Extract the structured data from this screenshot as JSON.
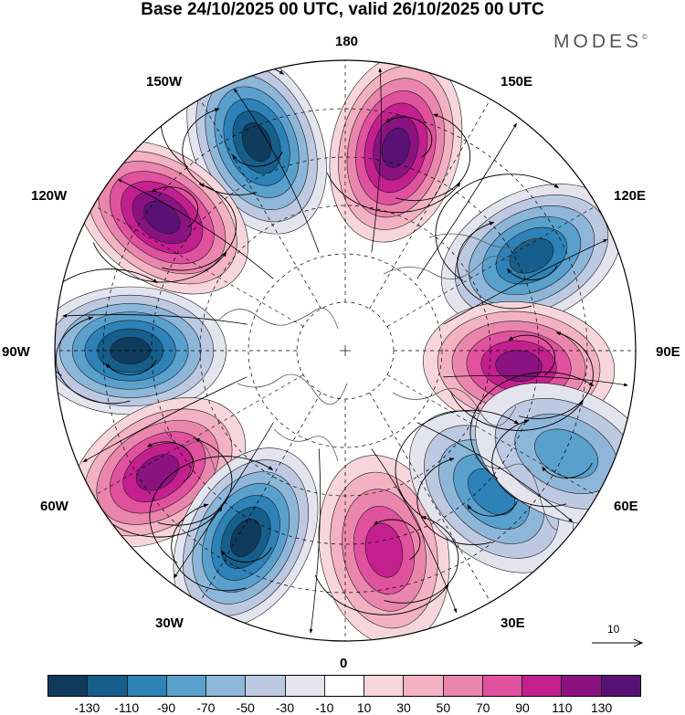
{
  "title": "Base 24/10/2025 00 UTC, valid 26/10/2025 00 UTC",
  "brand": "MODES",
  "brand_mark": "©",
  "longitude_labels": {
    "lon_0": "0",
    "lon_30e": "30E",
    "lon_60e": "60E",
    "lon_90e": "90E",
    "lon_120e": "120E",
    "lon_150e": "150E",
    "lon_180": "180",
    "lon_150w": "150W",
    "lon_120w": "120W",
    "lon_90w": "90W",
    "lon_60w": "60W",
    "lon_30w": "30W"
  },
  "reference_vector_label": "10",
  "colorbar": {
    "colors": [
      "#0f3b5c",
      "#165f8c",
      "#2d82b8",
      "#5aa0cc",
      "#8eb6d8",
      "#bcc9e1",
      "#e4e4ef",
      "#ffffff",
      "#f6d6dc",
      "#f2b2c2",
      "#ea86ad",
      "#e0519e",
      "#c41f8f",
      "#8b1281",
      "#5a1176"
    ],
    "tick_labels": [
      "-130",
      "-110",
      "-90",
      "-70",
      "-50",
      "-30",
      "-10",
      "10",
      "30",
      "50",
      "70",
      "90",
      "110",
      "130"
    ]
  },
  "anomaly_centers": [
    {
      "id": "A",
      "sign": "negative",
      "lon_deg": -157,
      "colat": 0.78,
      "peak": -140
    },
    {
      "id": "B",
      "sign": "positive",
      "lon_deg": 166,
      "colat": 0.72,
      "peak": 130
    },
    {
      "id": "C",
      "sign": "positive",
      "lon_deg": -126,
      "colat": 0.78,
      "peak": 140
    },
    {
      "id": "D",
      "sign": "negative",
      "lon_deg": 117,
      "colat": 0.72,
      "peak": -120
    },
    {
      "id": "E",
      "sign": "negative",
      "lon_deg": -90,
      "colat": 0.74,
      "peak": -140
    },
    {
      "id": "F",
      "sign": "positive",
      "lon_deg": 85,
      "colat": 0.6,
      "peak": 120
    },
    {
      "id": "G",
      "sign": "positive",
      "lon_deg": -57,
      "colat": 0.77,
      "peak": 120
    },
    {
      "id": "H",
      "sign": "negative",
      "lon_deg": -28,
      "colat": 0.73,
      "peak": -140
    },
    {
      "id": "I",
      "sign": "positive",
      "lon_deg": 11,
      "colat": 0.7,
      "peak": 100
    },
    {
      "id": "J",
      "sign": "negative",
      "lon_deg": 46,
      "colat": 0.7,
      "peak": -100
    },
    {
      "id": "K",
      "sign": "negative",
      "lon_deg": 65,
      "colat": 0.84,
      "peak": -80
    }
  ]
}
